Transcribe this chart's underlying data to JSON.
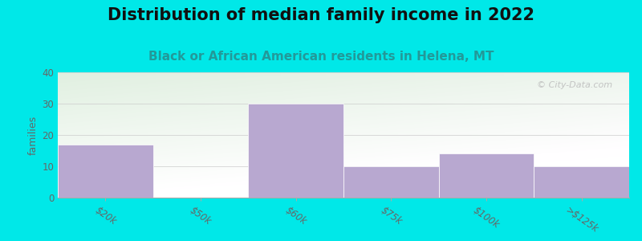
{
  "title": "Distribution of median family income in 2022",
  "subtitle": "Black or African American residents in Helena, MT",
  "categories": [
    "$20k",
    "$50k",
    "$60k",
    "$75k",
    "$100k",
    ">$125k"
  ],
  "values": [
    17,
    0,
    30,
    10,
    14,
    10
  ],
  "bar_color": "#b8a8d0",
  "background_outer": "#00e8e8",
  "background_inner_top_left": "#d8efd0",
  "background_inner_right": "#f0f5f0",
  "background_inner_bottom": "#ffffff",
  "ylabel": "families",
  "ylim": [
    0,
    40
  ],
  "yticks": [
    0,
    10,
    20,
    30,
    40
  ],
  "title_fontsize": 15,
  "subtitle_fontsize": 11,
  "subtitle_color": "#229999",
  "tick_label_color": "#666666",
  "axis_color": "#aaaaaa",
  "watermark": "© City-Data.com",
  "watermark_color": "#bbbbbb"
}
